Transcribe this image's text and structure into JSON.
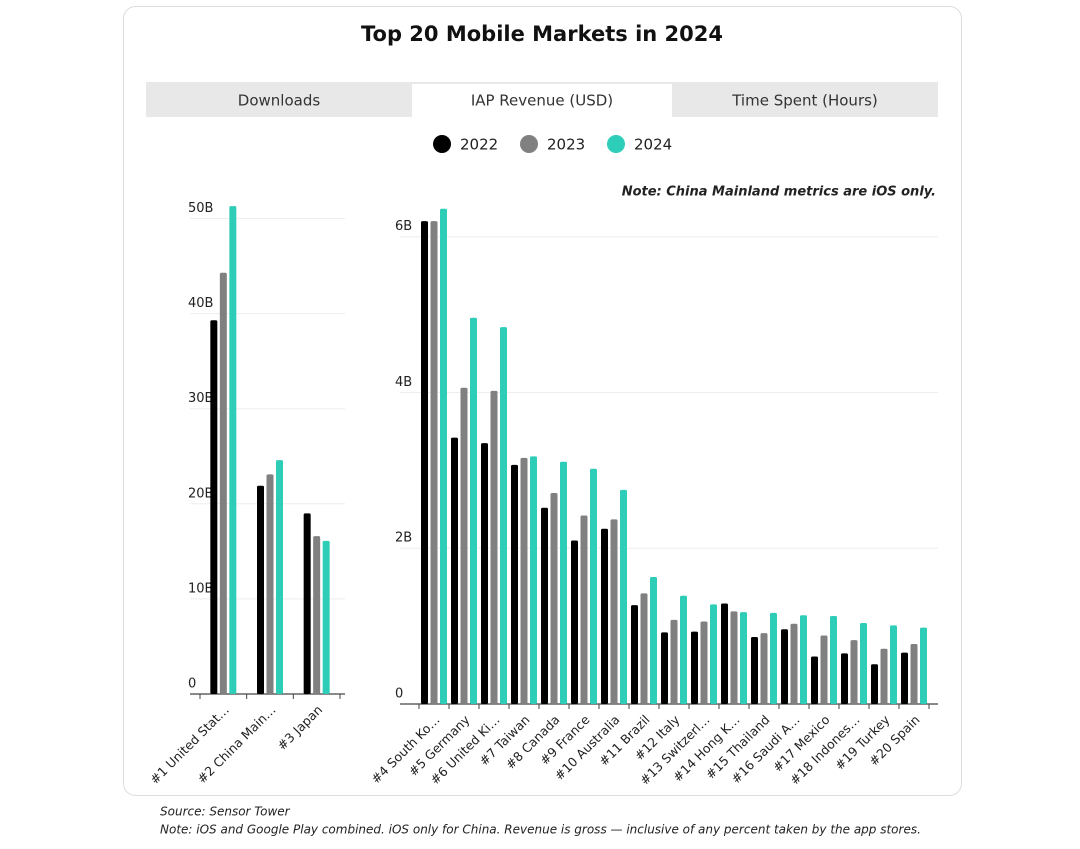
{
  "title": "Top 20 Mobile Markets in 2024",
  "tabs": [
    "Downloads",
    "IAP Revenue (USD)",
    "Time Spent (Hours)"
  ],
  "note": "Note: China Mainland metrics are iOS only.",
  "source": "Source: Sensor Tower",
  "footnote": "Note: iOS and Google Play combined. iOS only for China. Revenue is gross — inclusive of any percent taken by the app stores.",
  "chart_data": [
    {
      "type": "bar",
      "categories": [
        "#1 United Stat…",
        "#2 China Main…",
        "#3 Japan"
      ],
      "series": [
        {
          "name": "2022",
          "color": "#000000",
          "values": [
            39.3,
            21.9,
            19.0
          ]
        },
        {
          "name": "2023",
          "color": "#808080",
          "values": [
            44.3,
            23.1,
            16.6
          ]
        },
        {
          "name": "2024",
          "color": "#2ecdb8",
          "values": [
            51.3,
            24.6,
            16.1
          ]
        }
      ],
      "ylim": [
        0,
        53
      ],
      "yticks": [
        0,
        {
          "value": 10,
          "label": "10B"
        },
        {
          "value": 20,
          "label": "20B"
        },
        {
          "value": 30,
          "label": "30B"
        },
        {
          "value": 40,
          "label": "40B"
        },
        {
          "value": 50,
          "label": "50B"
        }
      ],
      "grid": true
    },
    {
      "type": "bar",
      "categories": [
        "#4 South Ko…",
        "#5 Germany",
        "#6 United Ki…",
        "#7 Taiwan",
        "#8 Canada",
        "#9 France",
        "#10 Australia",
        "#11 Brazil",
        "#12 Italy",
        "#13 Switzerl…",
        "#14 Hong K…",
        "#15 Thailand",
        "#16 Saudi A…",
        "#17 Mexico",
        "#18 Indones…",
        "#19 Turkey",
        "#20 Spain"
      ],
      "series": [
        {
          "color": "#000000",
          "values": [
            6.2,
            3.42,
            3.35,
            3.07,
            2.52,
            2.1,
            2.25,
            1.27,
            0.92,
            0.93,
            1.29,
            0.86,
            0.96,
            0.61,
            0.65,
            0.51,
            0.66
          ]
        },
        {
          "color": "#808080",
          "values": [
            6.2,
            4.06,
            4.02,
            3.16,
            2.71,
            2.42,
            2.37,
            1.42,
            1.08,
            1.06,
            1.19,
            0.91,
            1.03,
            0.88,
            0.82,
            0.71,
            0.77
          ]
        },
        {
          "color": "#2ecdb8",
          "values": [
            6.36,
            4.96,
            4.84,
            3.18,
            3.11,
            3.02,
            2.75,
            1.63,
            1.39,
            1.28,
            1.18,
            1.17,
            1.14,
            1.13,
            1.04,
            1.01,
            0.98
          ]
        }
      ],
      "ylim": [
        0,
        6.6
      ],
      "yticks": [
        0,
        {
          "value": 2,
          "label": "2B"
        },
        {
          "value": 4,
          "label": "4B"
        },
        {
          "value": 6,
          "label": "6B"
        }
      ],
      "grid": true
    }
  ]
}
